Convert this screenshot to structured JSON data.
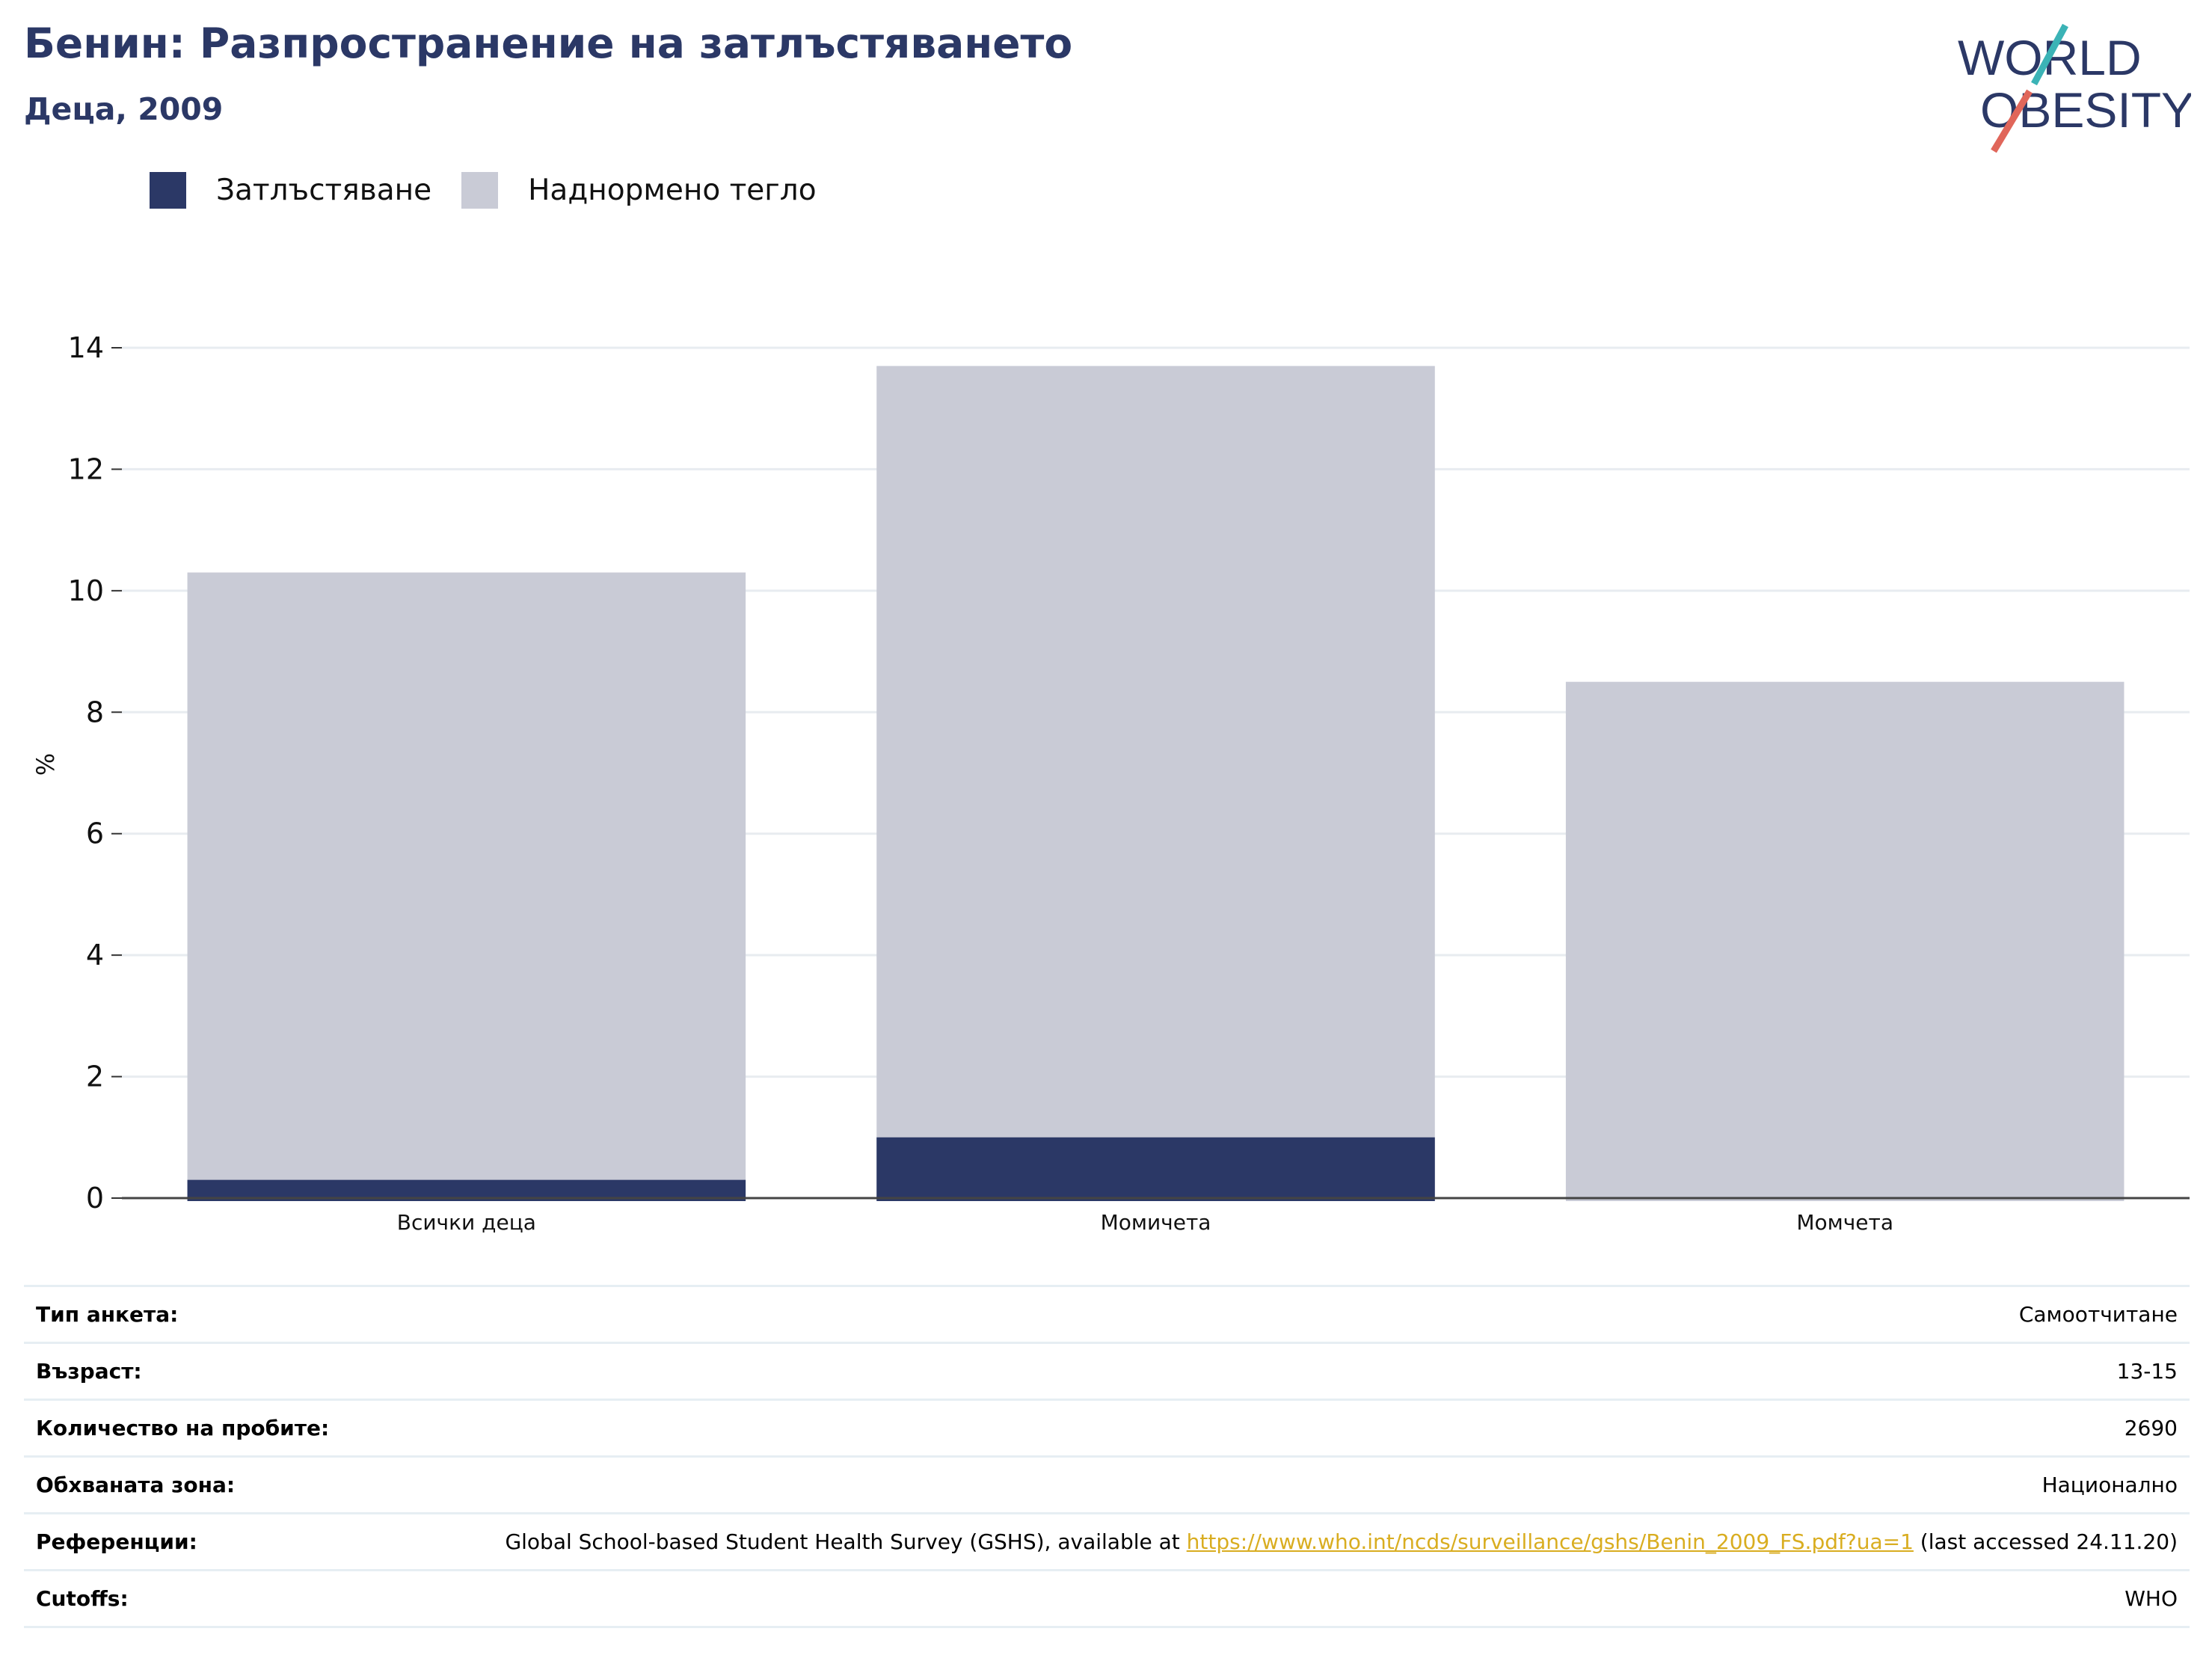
{
  "header": {
    "title": "Бенин: Разпространение на затлъстяването",
    "subtitle": "Деца, 2009",
    "logo_line1": "WORLD",
    "logo_line2": "OBESITY"
  },
  "colors": {
    "obesity": "#2b3866",
    "overweight": "#c9cbd6",
    "title": "#2b3866",
    "logo_teal": "#3bb3b6",
    "logo_coral": "#e0665a",
    "link": "#d9ad20"
  },
  "legend": [
    {
      "label": "Затлъстяване",
      "color": "#2b3866"
    },
    {
      "label": "Наднормено тегло",
      "color": "#c9cbd6"
    }
  ],
  "chart_data": {
    "type": "bar",
    "stacked": false,
    "overlaid": true,
    "categories": [
      "Всички деца",
      "Момичета",
      "Момчета"
    ],
    "series": [
      {
        "name": "Наднормено тегло",
        "values": [
          10.3,
          13.7,
          8.5
        ]
      },
      {
        "name": "Затлъстяване",
        "values": [
          0.3,
          1.0,
          0.0
        ]
      }
    ],
    "ylabel": "%",
    "ylim": [
      0,
      14
    ],
    "yticks": [
      0,
      2,
      4,
      6,
      8,
      10,
      12,
      14
    ],
    "grid": true,
    "legend_position": "top-left"
  },
  "info": [
    {
      "key": "Тип анкета:",
      "value": "Самоотчитане"
    },
    {
      "key": "Възраст:",
      "value": "13-15"
    },
    {
      "key": "Количество на пробите:",
      "value": "2690"
    },
    {
      "key": "Обхваната зона:",
      "value": "Национално"
    },
    {
      "key": "Референции:",
      "value_before": "Global School-based Student Health Survey (GSHS), available at ",
      "link": "https://www.who.int/ncds/surveillance/gshs/Benin_2009_FS.pdf?ua=1",
      "value_after": " (last accessed 24.11.20)"
    },
    {
      "key": "Cutoffs:",
      "value": "WHO"
    }
  ]
}
